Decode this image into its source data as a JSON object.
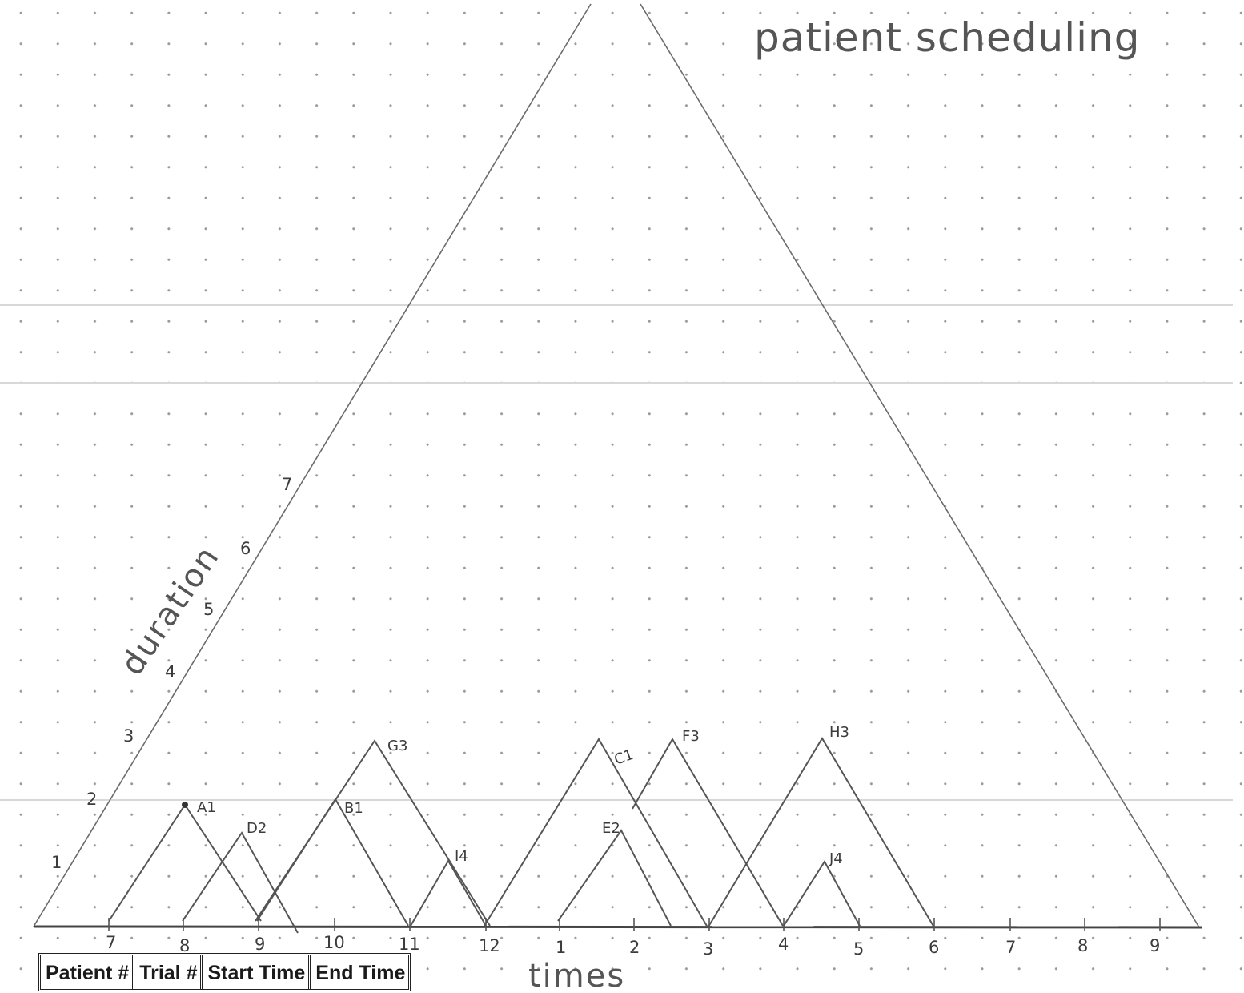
{
  "title": "patient scheduling",
  "duration_label": "duration",
  "times_label": "times",
  "duration_ticks": [
    "1",
    "2",
    "3",
    "4",
    "5",
    "6",
    "7"
  ],
  "time_ticks": [
    "7",
    "8",
    "9",
    "10",
    "11",
    "12",
    "1",
    "2",
    "3",
    "4",
    "5",
    "6",
    "7",
    "8",
    "9"
  ],
  "patients": [
    {
      "label": "A1",
      "start": "7",
      "duration": 2
    },
    {
      "label": "D2",
      "start": "8",
      "duration": 1.5
    },
    {
      "label": "B1",
      "start": "9",
      "duration": 2
    },
    {
      "label": "G3",
      "start": "9.5",
      "duration": 2.5
    },
    {
      "label": "I4",
      "start": "11",
      "duration": 1
    },
    {
      "label": "C1",
      "start": "12",
      "duration": 2.5
    },
    {
      "label": "E2",
      "start": "1",
      "duration": 1.5
    },
    {
      "label": "F3",
      "start": "1.5",
      "duration": 2.5
    },
    {
      "label": "H3",
      "start": "3",
      "duration": 2.5
    },
    {
      "label": "J4",
      "start": "4",
      "duration": 1
    }
  ],
  "table_headers": [
    "Patient #",
    "Trial #",
    "Start Time",
    "End Time"
  ]
}
